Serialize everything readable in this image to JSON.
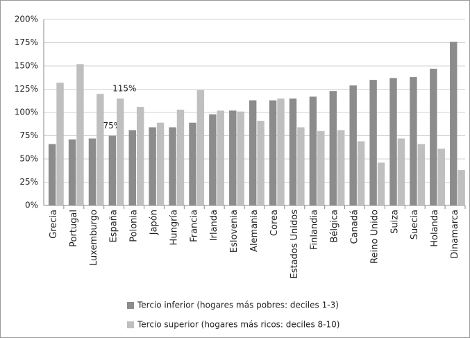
{
  "chart_data": {
    "type": "bar",
    "categories": [
      "Grecia",
      "Portugal",
      "Luxemburgo",
      "España",
      "Polonia",
      "Japón",
      "Hungría",
      "Francia",
      "Irlanda",
      "Eslovenia",
      "Alemania",
      "Corea",
      "Estados Unidos",
      "Finlandia",
      "Bélgica",
      "Canadá",
      "Reino Unido",
      "Suiza",
      "Suecia",
      "Holanda",
      "Dinamarca"
    ],
    "series": [
      {
        "name": "Tercio inferior (hogares más pobres: deciles 1-3)",
        "color": "#8c8c8c",
        "values": [
          66,
          71,
          72,
          75,
          81,
          84,
          84,
          89,
          98,
          102,
          113,
          113,
          115,
          117,
          123,
          129,
          135,
          137,
          138,
          147,
          176
        ],
        "value_labels": [
          null,
          null,
          null,
          "75%",
          null,
          null,
          null,
          null,
          null,
          null,
          null,
          null,
          null,
          null,
          null,
          null,
          null,
          null,
          null,
          null,
          null
        ]
      },
      {
        "name": "Tercio superior  (hogares más ricos: deciles 8-10)",
        "color": "#bfbfbf",
        "values": [
          132,
          152,
          120,
          115,
          106,
          89,
          103,
          124,
          102,
          101,
          91,
          115,
          84,
          80,
          81,
          69,
          46,
          72,
          66,
          61,
          38
        ],
        "value_labels": [
          null,
          null,
          null,
          "115%",
          null,
          null,
          null,
          null,
          null,
          null,
          null,
          null,
          null,
          null,
          null,
          null,
          null,
          null,
          null,
          null,
          null
        ]
      }
    ],
    "ylim": [
      0,
      200
    ],
    "yticks": [
      {
        "value": 0,
        "label": "0%"
      },
      {
        "value": 25,
        "label": "25%"
      },
      {
        "value": 50,
        "label": "50%"
      },
      {
        "value": 75,
        "label": "75%"
      },
      {
        "value": 100,
        "label": "100%"
      },
      {
        "value": 125,
        "label": "125%"
      },
      {
        "value": 150,
        "label": "150%"
      },
      {
        "value": 175,
        "label": "175%"
      },
      {
        "value": 200,
        "label": "200%"
      }
    ],
    "grid": true,
    "legend": "bottom"
  }
}
